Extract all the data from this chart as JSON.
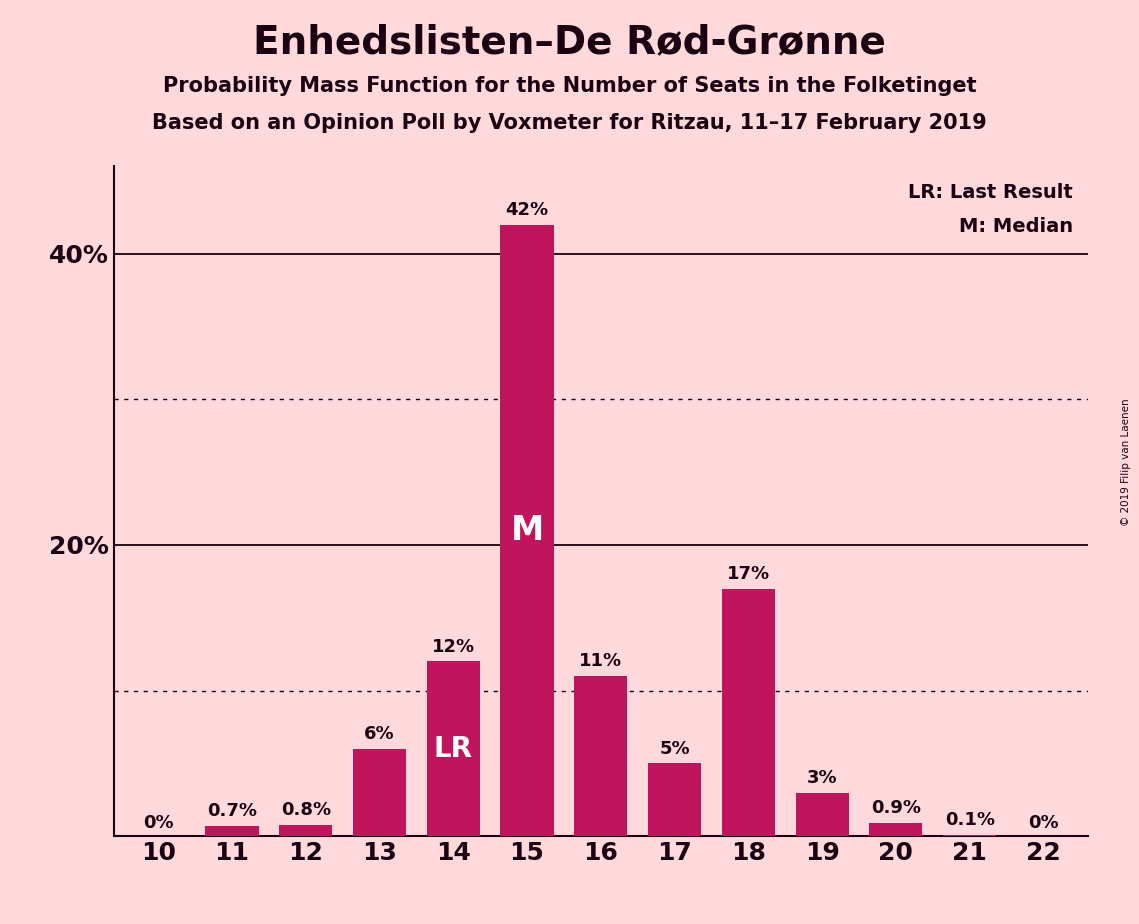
{
  "title": "Enhedslisten–De Rød-Grønne",
  "subtitle1": "Probability Mass Function for the Number of Seats in the Folketinget",
  "subtitle2": "Based on an Opinion Poll by Voxmeter for Ritzau, 11–17 February 2019",
  "copyright": "© 2019 Filip van Laenen",
  "categories": [
    10,
    11,
    12,
    13,
    14,
    15,
    16,
    17,
    18,
    19,
    20,
    21,
    22
  ],
  "values": [
    0.0,
    0.7,
    0.8,
    6.0,
    12.0,
    42.0,
    11.0,
    5.0,
    17.0,
    3.0,
    0.9,
    0.1,
    0.0
  ],
  "labels": [
    "0%",
    "0.7%",
    "0.8%",
    "6%",
    "12%",
    "42%",
    "11%",
    "5%",
    "17%",
    "3%",
    "0.9%",
    "0.1%",
    "0%"
  ],
  "bar_color": "#C0145C",
  "background_color": "#FFD9DC",
  "text_color": "#1a0010",
  "lr_bar": 14,
  "median_bar": 15,
  "legend_line1": "LR: Last Result",
  "legend_line2": "M: Median",
  "solid_gridlines": [
    20,
    40
  ],
  "dotted_gridlines": [
    10,
    30
  ],
  "ytick_positions": [
    20,
    40
  ],
  "ytick_labels": [
    "20%",
    "40%"
  ],
  "ylim": [
    0,
    46
  ]
}
